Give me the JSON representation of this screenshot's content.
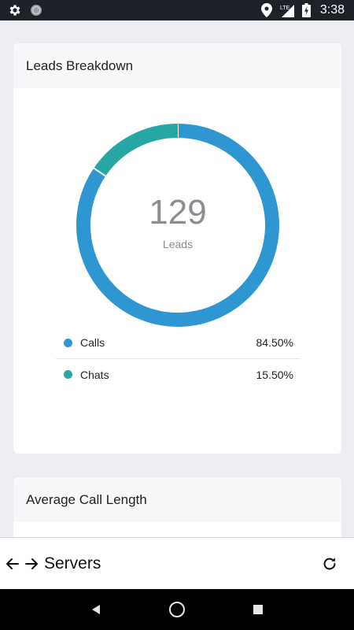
{
  "status_bar": {
    "time": "3:38",
    "network": "LTE",
    "icons": [
      "gear-icon",
      "circle-icon",
      "location-icon",
      "signal-icon",
      "battery-charging-icon"
    ]
  },
  "cards": [
    {
      "title": "Leads Breakdown",
      "total": "129",
      "total_caption": "Leads",
      "chart_data": {
        "type": "pie",
        "style": "donut",
        "center_value": "129",
        "center_label": "Leads",
        "slices": [
          {
            "label": "Calls",
            "value": 84.5,
            "display": "84.50%",
            "color": "#2e97d1"
          },
          {
            "label": "Chats",
            "value": 15.5,
            "display": "15.50%",
            "color": "#26a6a4"
          }
        ]
      }
    },
    {
      "title": "Average Call Length"
    }
  ],
  "app_bar": {
    "title": "Servers",
    "icons": [
      "arrow-left-icon",
      "arrow-right-icon",
      "refresh-icon"
    ]
  },
  "android_nav": {
    "icons": [
      "back-triangle-icon",
      "home-circle-icon",
      "recents-square-icon"
    ]
  }
}
